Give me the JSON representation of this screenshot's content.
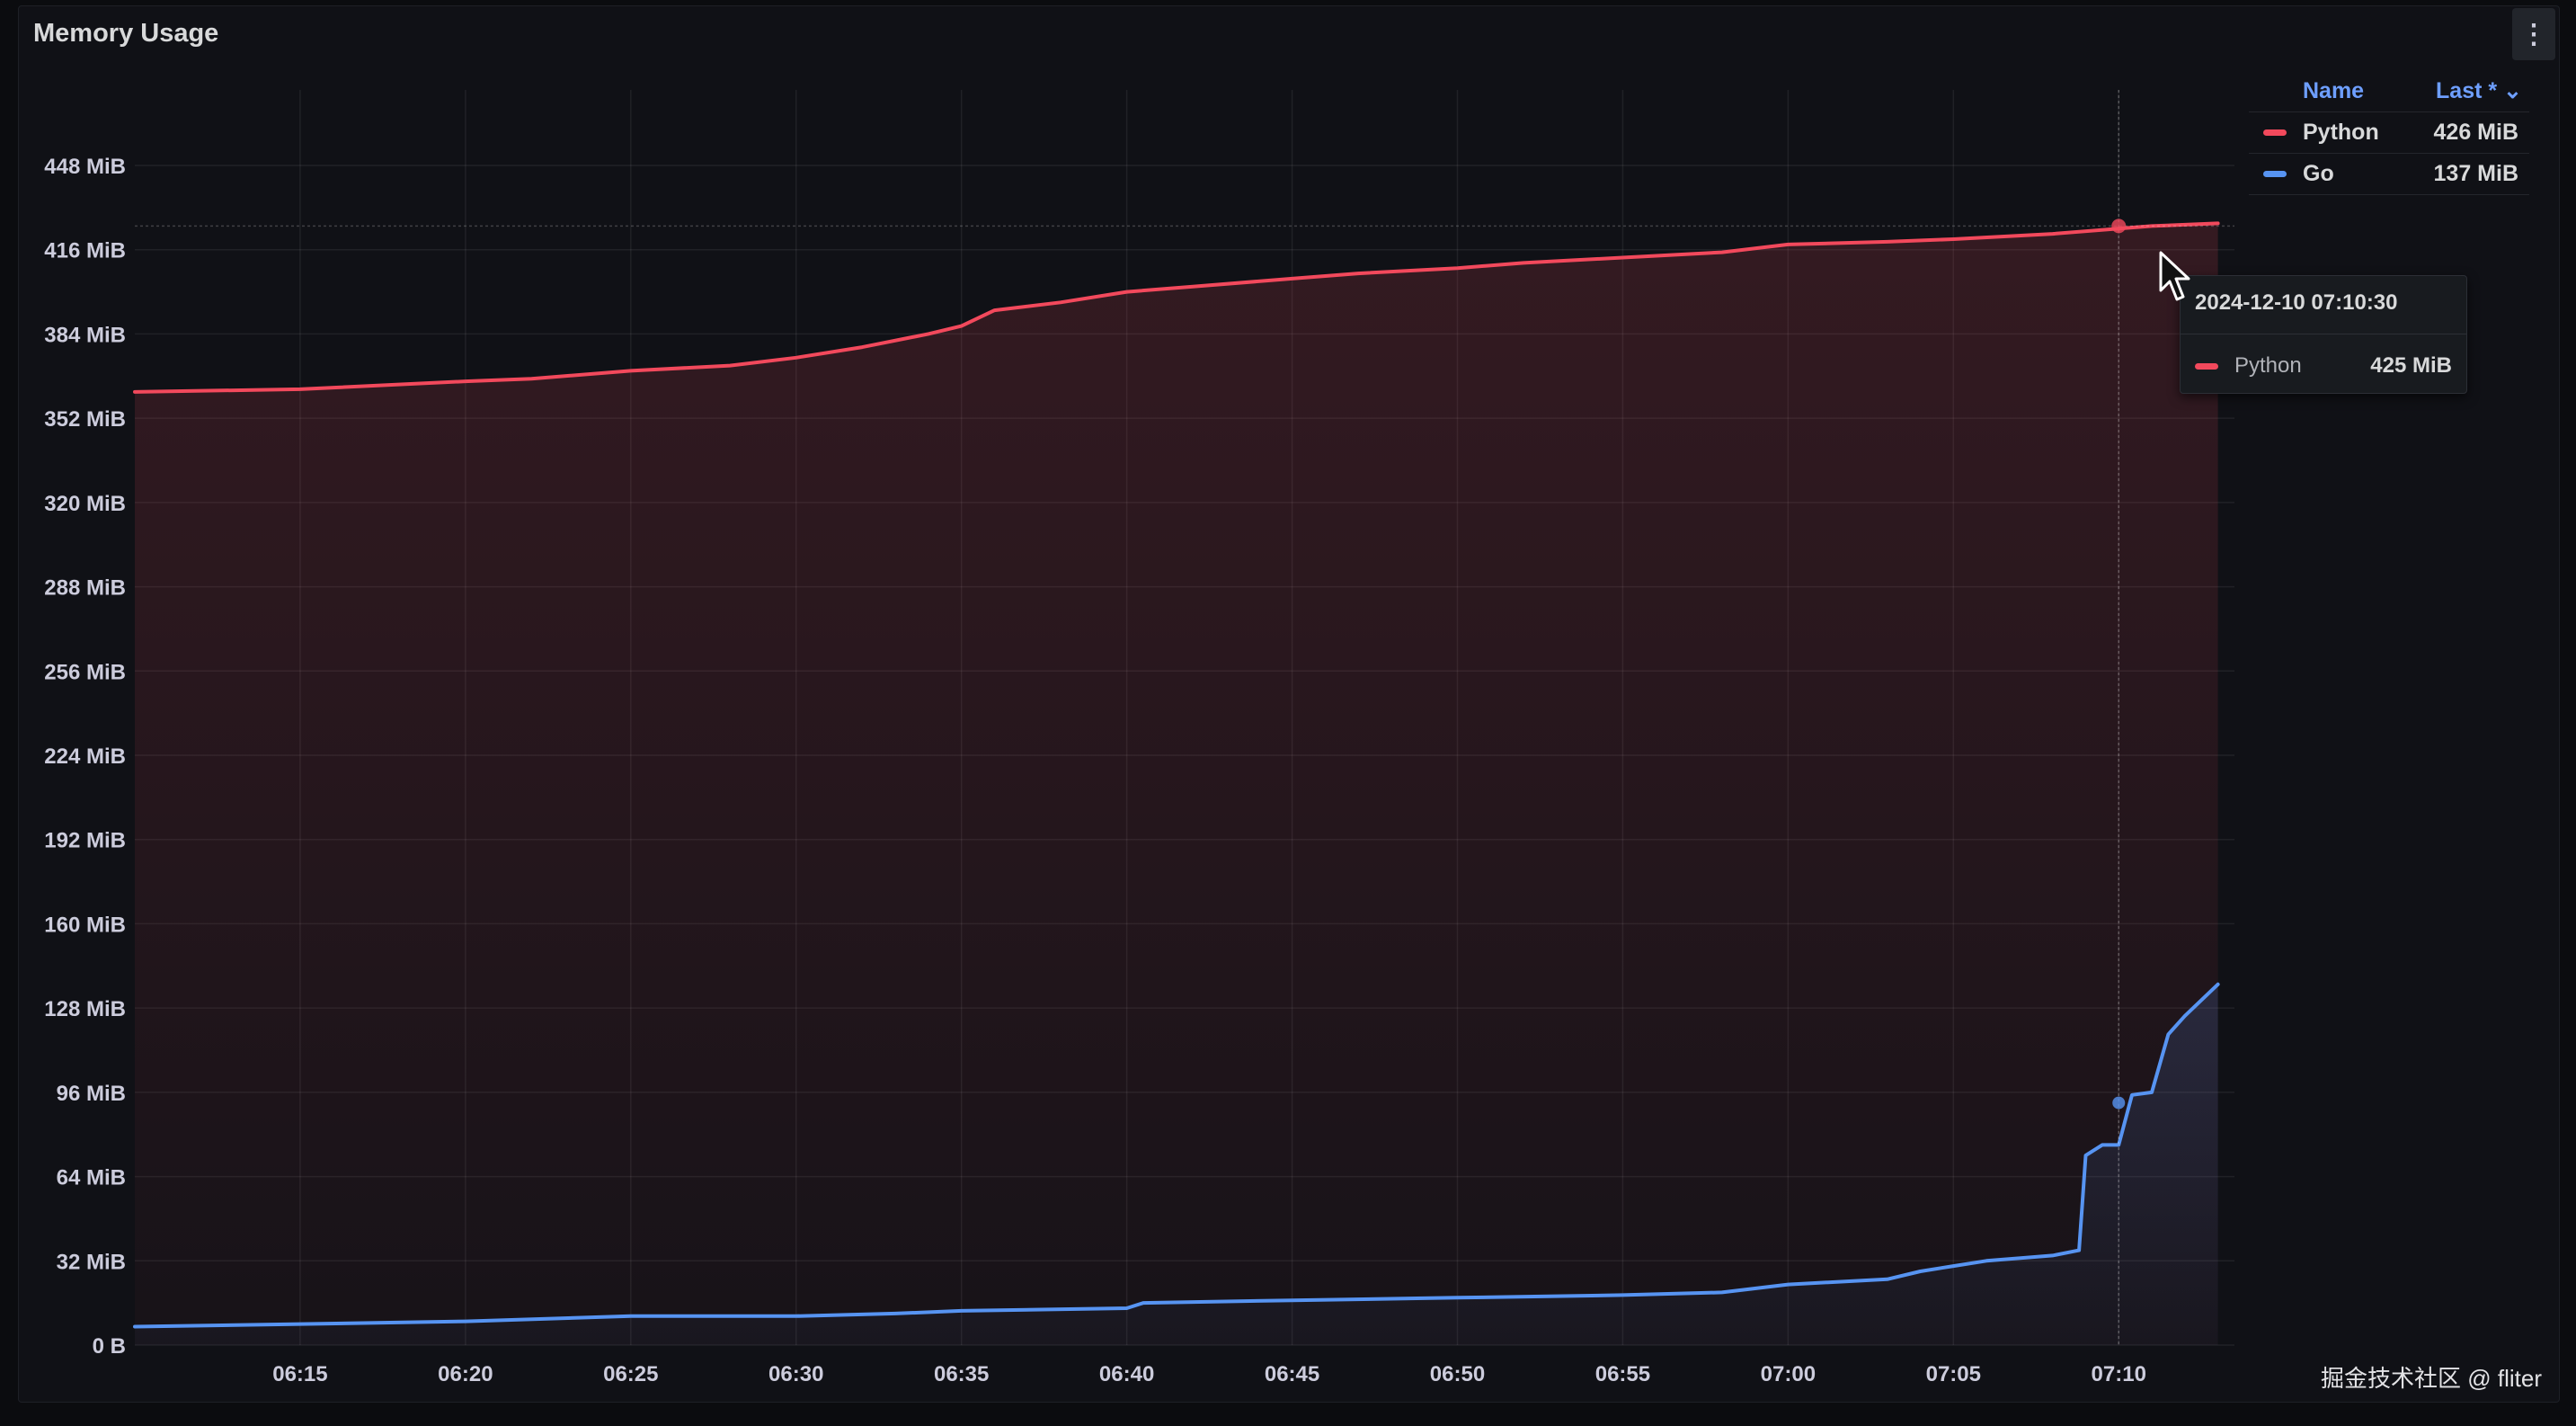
{
  "panel": {
    "title": "Memory Usage",
    "menu_icon": "kebab-menu-icon"
  },
  "legend": {
    "name_header": "Name",
    "last_header": "Last * ⌄",
    "items": [
      {
        "name": "Python",
        "value": "426 MiB",
        "color": "#f2495c"
      },
      {
        "name": "Go",
        "value": "137 MiB",
        "color": "#5794f2"
      }
    ]
  },
  "tooltip": {
    "time": "2024-12-10 07:10:30",
    "series": "Python",
    "value": "425 MiB",
    "color": "#f2495c"
  },
  "watermark": "掘金技术社区 @ fliter",
  "chart_data": {
    "type": "line",
    "title": "Memory Usage",
    "y_unit": "MiB",
    "ylim": [
      0,
      448
    ],
    "y_ticks": [
      {
        "value": 448,
        "label": "448 MiB"
      },
      {
        "value": 416,
        "label": "416 MiB"
      },
      {
        "value": 384,
        "label": "384 MiB"
      },
      {
        "value": 352,
        "label": "352 MiB"
      },
      {
        "value": 320,
        "label": "320 MiB"
      },
      {
        "value": 288,
        "label": "288 MiB"
      },
      {
        "value": 256,
        "label": "256 MiB"
      },
      {
        "value": 224,
        "label": "224 MiB"
      },
      {
        "value": 192,
        "label": "192 MiB"
      },
      {
        "value": 160,
        "label": "160 MiB"
      },
      {
        "value": 128,
        "label": "128 MiB"
      },
      {
        "value": 96,
        "label": "96 MiB"
      },
      {
        "value": 64,
        "label": "64 MiB"
      },
      {
        "value": 32,
        "label": "32 MiB"
      },
      {
        "value": 0,
        "label": "0 B"
      }
    ],
    "x_range": [
      "06:10",
      "07:13"
    ],
    "x_ticks": [
      "06:15",
      "06:20",
      "06:25",
      "06:30",
      "06:35",
      "06:40",
      "06:45",
      "06:50",
      "06:55",
      "07:00",
      "07:05",
      "07:10"
    ],
    "grid": true,
    "legend_position": "right",
    "hover_time": "07:10:30",
    "series": [
      {
        "name": "Python",
        "color": "#f2495c",
        "points": [
          [
            "06:10",
            362
          ],
          [
            "06:15",
            363
          ],
          [
            "06:20",
            366
          ],
          [
            "06:22",
            367
          ],
          [
            "06:25",
            370
          ],
          [
            "06:28",
            372
          ],
          [
            "06:30",
            375
          ],
          [
            "06:32",
            379
          ],
          [
            "06:34",
            384
          ],
          [
            "06:35",
            387
          ],
          [
            "06:36",
            393
          ],
          [
            "06:38",
            396
          ],
          [
            "06:40",
            400
          ],
          [
            "06:42",
            402
          ],
          [
            "06:45",
            405
          ],
          [
            "06:47",
            407
          ],
          [
            "06:50",
            409
          ],
          [
            "06:52",
            411
          ],
          [
            "06:55",
            413
          ],
          [
            "06:58",
            415
          ],
          [
            "07:00",
            418
          ],
          [
            "07:03",
            419
          ],
          [
            "07:05",
            420
          ],
          [
            "07:08",
            422
          ],
          [
            "07:10",
            424
          ],
          [
            "07:11",
            425
          ],
          [
            "07:13",
            426
          ]
        ]
      },
      {
        "name": "Go",
        "color": "#5794f2",
        "points": [
          [
            "06:10",
            7
          ],
          [
            "06:15",
            8
          ],
          [
            "06:20",
            9
          ],
          [
            "06:25",
            11
          ],
          [
            "06:30",
            11
          ],
          [
            "06:33",
            12
          ],
          [
            "06:35",
            13
          ],
          [
            "06:40",
            14
          ],
          [
            "06:40.5",
            16
          ],
          [
            "06:45",
            17
          ],
          [
            "06:50",
            18
          ],
          [
            "06:55",
            19
          ],
          [
            "06:58",
            20
          ],
          [
            "07:00",
            23
          ],
          [
            "07:03",
            25
          ],
          [
            "07:04",
            28
          ],
          [
            "07:05",
            30
          ],
          [
            "07:06",
            32
          ],
          [
            "07:08",
            34
          ],
          [
            "07:08.8",
            36
          ],
          [
            "07:09",
            72
          ],
          [
            "07:09.5",
            76
          ],
          [
            "07:10",
            76
          ],
          [
            "07:10.4",
            95
          ],
          [
            "07:11",
            96
          ],
          [
            "07:11.5",
            118
          ],
          [
            "07:12",
            125
          ],
          [
            "07:13",
            137
          ]
        ]
      }
    ]
  }
}
